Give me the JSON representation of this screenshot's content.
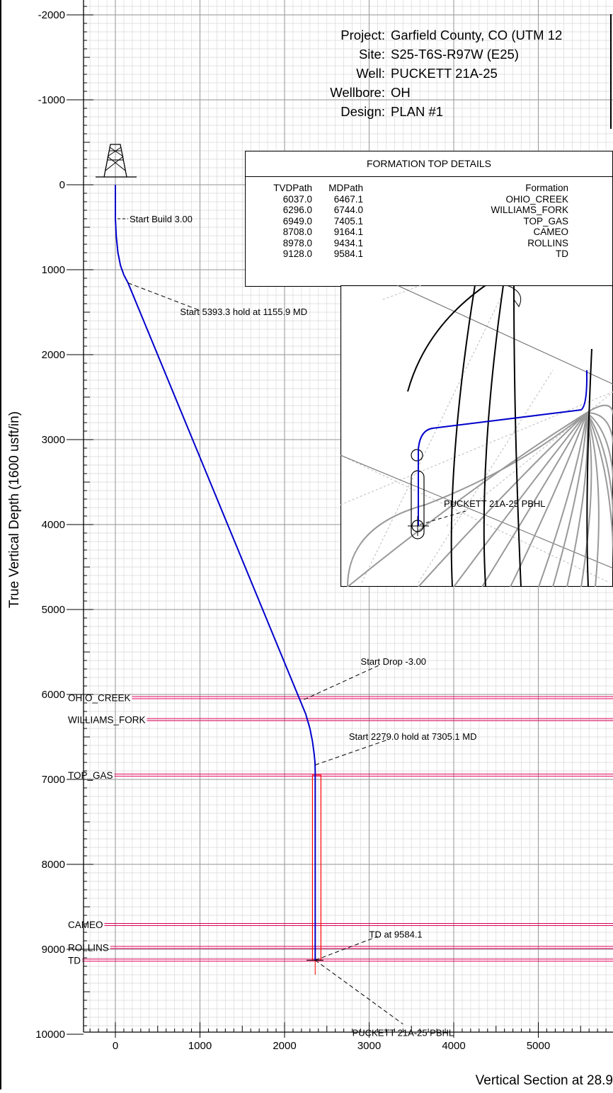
{
  "header": {
    "rows": [
      {
        "key": "Project:",
        "value": "Garfield County, CO (UTM 12"
      },
      {
        "key": "Site:",
        "value": "S25-T6S-R97W (E25)"
      },
      {
        "key": "Well:",
        "value": "PUCKETT 21A-25"
      },
      {
        "key": "Wellbore:",
        "value": "OH"
      },
      {
        "key": "Design:",
        "value": "PLAN #1"
      }
    ]
  },
  "formation_table": {
    "title": "FORMATION TOP DETAILS",
    "columns": [
      "TVDPath",
      "MDPath",
      "Formation"
    ],
    "rows": [
      [
        "6037.0",
        "6467.1",
        "OHIO_CREEK"
      ],
      [
        "6296.0",
        "6744.0",
        "WILLIAMS_FORK"
      ],
      [
        "6949.0",
        "7405.1",
        "TOP_GAS"
      ],
      [
        "8708.0",
        "9164.1",
        "CAMEO"
      ],
      [
        "8978.0",
        "9434.1",
        "ROLLINS"
      ],
      [
        "9128.0",
        "9584.1",
        "TD"
      ]
    ]
  },
  "chart_data": {
    "type": "line",
    "ylabel": "True Vertical Depth (1600 usft/in)",
    "xlabel": "Vertical Section at 28.9",
    "xlim": [
      -1300,
      5900
    ],
    "ylim": [
      -2100,
      10100
    ],
    "x_ticks": [
      0,
      1000,
      2000,
      3000,
      4000,
      5000
    ],
    "x_tick_labels": [
      "0",
      "1000",
      "2000",
      "3000",
      "4000",
      "5000"
    ],
    "y_ticks": [
      -2000,
      -1000,
      0,
      1000,
      2000,
      3000,
      4000,
      5000,
      6000,
      7000,
      8000,
      9000,
      10000
    ],
    "y_tick_labels": [
      "-2000",
      "-1000",
      "0",
      "1000",
      "2000",
      "3000",
      "4000",
      "5000",
      "6000",
      "7000",
      "8000",
      "9000",
      "10000"
    ],
    "grid": true,
    "series": [
      {
        "color": "#0000cc",
        "x": [
          0,
          0,
          10,
          30,
          60,
          100,
          150,
          2180,
          2250,
          2300,
          2330,
          2350,
          2360,
          2362,
          2362
        ],
        "y": [
          0,
          400,
          600,
          800,
          950,
          1060,
          1156,
          6060,
          6230,
          6400,
          6550,
          6700,
          6800,
          6900,
          9128
        ]
      }
    ],
    "formation_tops": [
      {
        "name": "OHIO_CREEK",
        "tvd": 6037
      },
      {
        "name": "WILLIAMS_FORK",
        "tvd": 6296
      },
      {
        "name": "TOP_GAS",
        "tvd": 6949
      },
      {
        "name": "CAMEO",
        "tvd": 8708
      },
      {
        "name": "ROLLINS",
        "tvd": 8978
      },
      {
        "name": "TD",
        "tvd": 9128
      }
    ],
    "target_box": {
      "x": [
        2330,
        2430
      ],
      "y": [
        6949,
        9128
      ]
    },
    "annotations": [
      {
        "text": "Start Build 3.00",
        "x": 0,
        "y": 400
      },
      {
        "text": "Start 5393.3 hold at 1155.9 MD",
        "x": 150,
        "y": 1156
      },
      {
        "text": "Start Drop -3.00",
        "x": 2180,
        "y": 6060
      },
      {
        "text": "Start 2279.0 hold at 7305.1 MD",
        "x": 2362,
        "y": 6830
      },
      {
        "text": "TD at 9584.1",
        "x": 2362,
        "y": 9128
      },
      {
        "text": "PUCKETT 21A-25 PBHL",
        "x": 2362,
        "y": 9128
      }
    ],
    "inset_label": "PUCKETT 21A-25 PBHL"
  },
  "colors": {
    "wellpath": "#0000cc",
    "formation": "#e0005a",
    "target": "#ff0000",
    "grid_minor": "#d9d9d9",
    "grid_major": "#9a9a9a"
  }
}
